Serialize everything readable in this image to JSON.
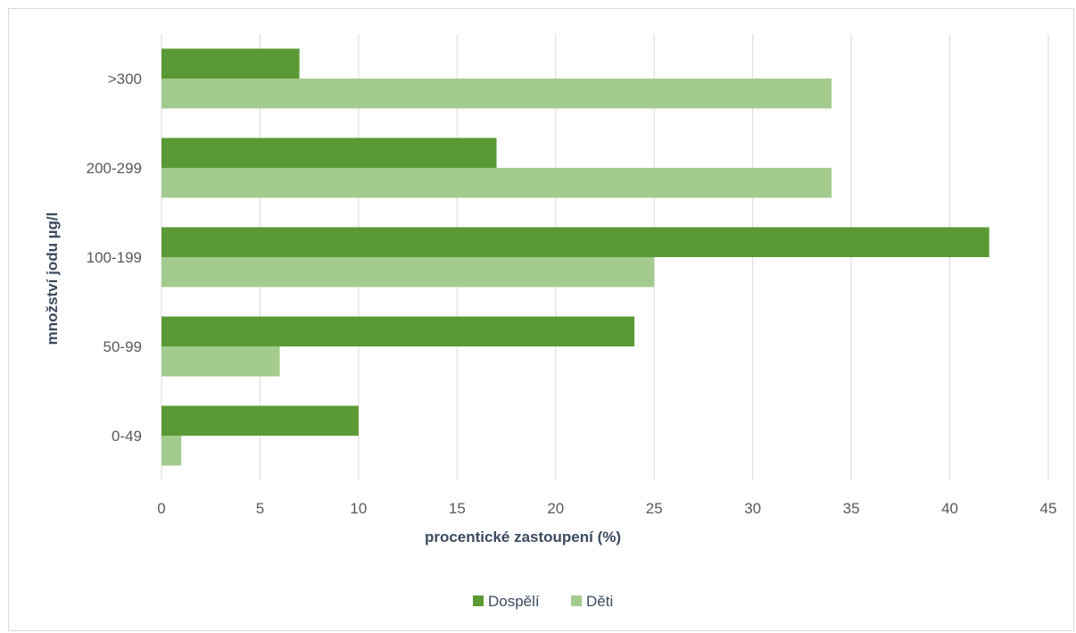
{
  "chart_data": {
    "type": "bar",
    "orientation": "horizontal",
    "title": "",
    "categories": [
      "0-49",
      "50-99",
      "100-199",
      "200-299",
      ">300"
    ],
    "series": [
      {
        "name": "Dospělí",
        "values": [
          10,
          24,
          42,
          17,
          7
        ],
        "color": "#5a9a35"
      },
      {
        "name": "Děti",
        "values": [
          1,
          6,
          25,
          34,
          34
        ],
        "color": "#a3cb8d"
      }
    ],
    "xlabel": "procentické zastoupení (%)",
    "ylabel": "množství jodu µg/l",
    "xlim": [
      0,
      45
    ],
    "xticks": [
      "0",
      "5",
      "10",
      "15",
      "20",
      "25",
      "30",
      "35",
      "40",
      "45"
    ],
    "grid": "vertical",
    "legend_position": "bottom"
  }
}
